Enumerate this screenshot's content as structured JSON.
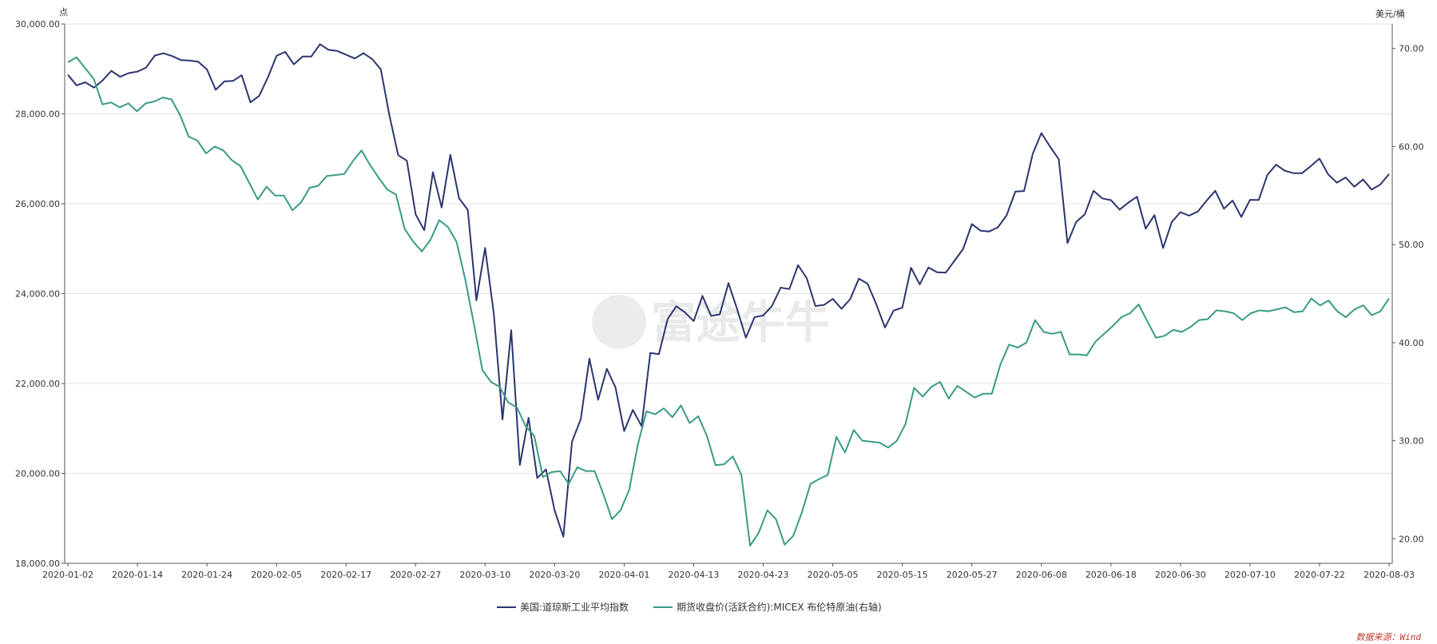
{
  "chart_data": {
    "type": "line",
    "left_unit": "点",
    "right_unit": "美元/桶",
    "y_left": {
      "min": 18000,
      "max": 30000,
      "ticks": [
        "30,000.00",
        "28,000.00",
        "26,000.00",
        "24,000.00",
        "22,000.00",
        "20,000.00",
        "18,000.00"
      ],
      "tick_values": [
        30000,
        28000,
        26000,
        24000,
        22000,
        20000,
        18000
      ]
    },
    "y_right": {
      "min": 17.5,
      "max": 72.5,
      "ticks": [
        "70.00",
        "60.00",
        "50.00",
        "40.00",
        "30.00",
        "20.00"
      ],
      "tick_values": [
        70,
        60,
        50,
        40,
        30,
        20
      ]
    },
    "x_ticks": [
      "2020-01-02",
      "2020-01-14",
      "2020-01-24",
      "2020-02-05",
      "2020-02-17",
      "2020-02-27",
      "2020-03-10",
      "2020-03-20",
      "2020-04-01",
      "2020-04-13",
      "2020-04-23",
      "2020-05-05",
      "2020-05-15",
      "2020-05-27",
      "2020-06-08",
      "2020-06-18",
      "2020-06-30",
      "2020-07-10",
      "2020-07-22",
      "2020-08-03"
    ],
    "grid": true,
    "legend_position": "bottom",
    "series": [
      {
        "name": "美国:道琼斯工业平均指数",
        "color": "#2b3570",
        "axis": "left",
        "values": [
          28868,
          28634,
          28703,
          28583,
          28745,
          28956,
          28824,
          28907,
          28940,
          29030,
          29297,
          29348,
          29286,
          29196,
          29186,
          29160,
          28989,
          28535,
          28722,
          28734,
          28859,
          28256,
          28399,
          28807,
          29290,
          29379,
          29103,
          29276,
          29277,
          29551,
          29424,
          29399,
          29318,
          29232,
          29349,
          29219,
          28992,
          27960,
          27081,
          26957,
          25766,
          25409,
          26703,
          25917,
          27090,
          26121,
          25865,
          23851,
          25018,
          23553,
          21200,
          23185,
          20188,
          21237,
          19899,
          20087,
          19173,
          18592,
          20705,
          21201,
          22552,
          21637,
          22327,
          21917,
          20943,
          21413,
          21053,
          22680,
          22653,
          23433,
          23719,
          23580,
          23390,
          23950,
          23504,
          23538,
          24234,
          23650,
          23019,
          23475,
          23515,
          23724,
          24134,
          24101,
          24633,
          24346,
          23724,
          23749,
          23883,
          23664,
          23876,
          24332,
          24221,
          23765,
          23247,
          23625,
          23686,
          24576,
          24206,
          24581,
          24474,
          24465,
          24731,
          24995,
          25548,
          25401,
          25383,
          25475,
          25742,
          26270,
          26282,
          27111,
          27572,
          27272,
          26990,
          25128,
          25596,
          25763,
          26290,
          26120,
          26080,
          25871,
          26025,
          26157,
          25446,
          25745,
          25016,
          25595,
          25813,
          25735,
          25827,
          26068,
          26288,
          25890,
          26072,
          25706,
          26087,
          26086,
          26643,
          26870,
          26734,
          26681,
          26680,
          26840,
          27005,
          26653,
          26470,
          26585,
          26379,
          26540,
          26314,
          26428,
          26664
        ]
      },
      {
        "name": "期货收盘价(活跃合约):MICEX 布伦特原油(右轴)",
        "color": "#3a9b84",
        "axis": "right",
        "values": [
          68.6,
          69.1,
          68.0,
          66.9,
          64.3,
          64.5,
          64.0,
          64.4,
          63.6,
          64.4,
          64.6,
          65.0,
          64.8,
          63.2,
          61.0,
          60.6,
          59.3,
          60.0,
          59.6,
          58.6,
          58.0,
          56.3,
          54.6,
          55.9,
          55.0,
          55.0,
          53.5,
          54.3,
          55.8,
          56.0,
          57.0,
          57.1,
          57.2,
          58.5,
          59.6,
          58.1,
          56.8,
          55.6,
          55.1,
          51.6,
          50.3,
          49.3,
          50.5,
          52.5,
          51.8,
          50.3,
          46.5,
          42.0,
          37.2,
          36.0,
          35.5,
          33.9,
          33.4,
          31.5,
          30.5,
          26.3,
          26.8,
          26.9,
          25.6,
          27.3,
          26.9,
          26.9,
          24.6,
          22.0,
          22.9,
          25.0,
          29.6,
          33.0,
          32.7,
          33.3,
          32.4,
          33.6,
          31.8,
          32.5,
          30.5,
          27.5,
          27.6,
          28.4,
          26.5,
          19.3,
          20.6,
          22.9,
          22.0,
          19.4,
          20.3,
          22.7,
          25.6,
          26.1,
          26.5,
          30.4,
          28.8,
          31.1,
          30.0,
          29.9,
          29.8,
          29.3,
          30.0,
          31.7,
          35.4,
          34.5,
          35.5,
          36.0,
          34.3,
          35.6,
          35.0,
          34.4,
          34.8,
          34.8,
          37.8,
          39.8,
          39.5,
          40.0,
          42.3,
          41.1,
          40.9,
          41.1,
          38.8,
          38.8,
          38.7,
          40.1,
          40.9,
          41.7,
          42.6,
          43.0,
          43.9,
          42.2,
          40.5,
          40.7,
          41.3,
          41.1,
          41.6,
          42.3,
          42.4,
          43.3,
          43.2,
          43.0,
          42.3,
          43.0,
          43.3,
          43.2,
          43.4,
          43.6,
          43.1,
          43.2,
          44.5,
          43.8,
          44.3,
          43.2,
          42.6,
          43.4,
          43.8,
          42.8,
          43.2,
          44.5
        ]
      }
    ]
  },
  "watermark": "富途牛牛",
  "source": "数据来源：Wind"
}
